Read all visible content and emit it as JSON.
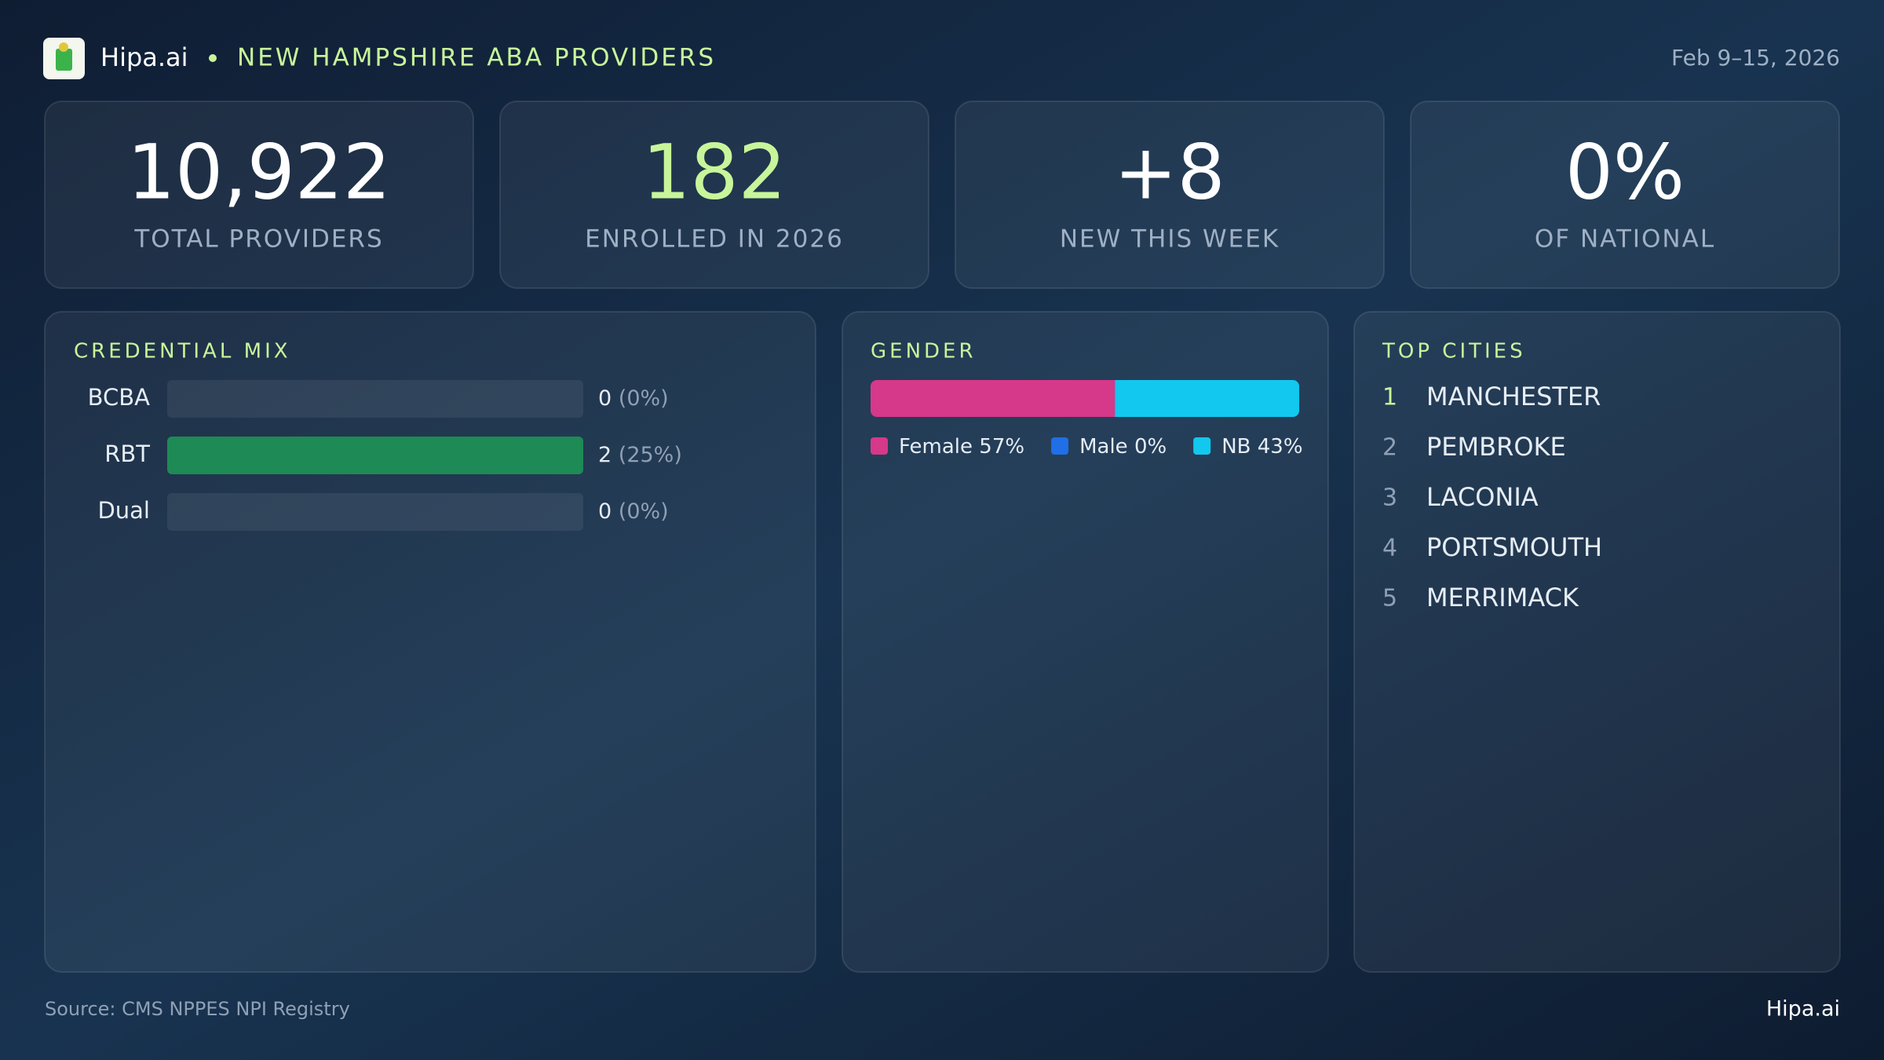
{
  "header": {
    "brand": "Hipa.ai",
    "title": "NEW HAMPSHIRE ABA PROVIDERS",
    "date": "Feb 9–15, 2026"
  },
  "kpis": [
    {
      "value": "10,922",
      "label": "TOTAL PROVIDERS"
    },
    {
      "value": "182",
      "label": "ENROLLED IN 2026"
    },
    {
      "value": "+8",
      "label": "NEW THIS WEEK"
    },
    {
      "value": "0%",
      "label": "OF NATIONAL"
    }
  ],
  "credential_mix": {
    "title": "CREDENTIAL MIX",
    "categories": [
      "BCBA",
      "RBT",
      "Dual"
    ],
    "values": [
      0,
      2,
      0
    ],
    "shares": [
      0,
      25,
      0
    ],
    "share_labels": [
      "(0%)",
      "(25%)",
      "(0%)"
    ],
    "color": "#1e8a55"
  },
  "gender": {
    "title": "GENDER",
    "series": [
      {
        "name": "Female",
        "value": 57,
        "value_label": "57%",
        "color": "#d6388a"
      },
      {
        "name": "Male",
        "value": 0,
        "value_label": "0%",
        "color": "#1f6fe6"
      },
      {
        "name": "NB",
        "value": 43,
        "value_label": "43%",
        "color": "#12c8ee"
      }
    ]
  },
  "top_cities": {
    "title": "TOP CITIES",
    "ranks": [
      "1",
      "2",
      "3",
      "4",
      "5"
    ],
    "cities": [
      "MANCHESTER",
      "PEMBROKE",
      "LACONIA",
      "PORTSMOUTH",
      "MERRIMACK"
    ]
  },
  "footer": {
    "source": "Source: CMS NPPES NPI Registry",
    "brand": "Hipa.ai"
  }
}
